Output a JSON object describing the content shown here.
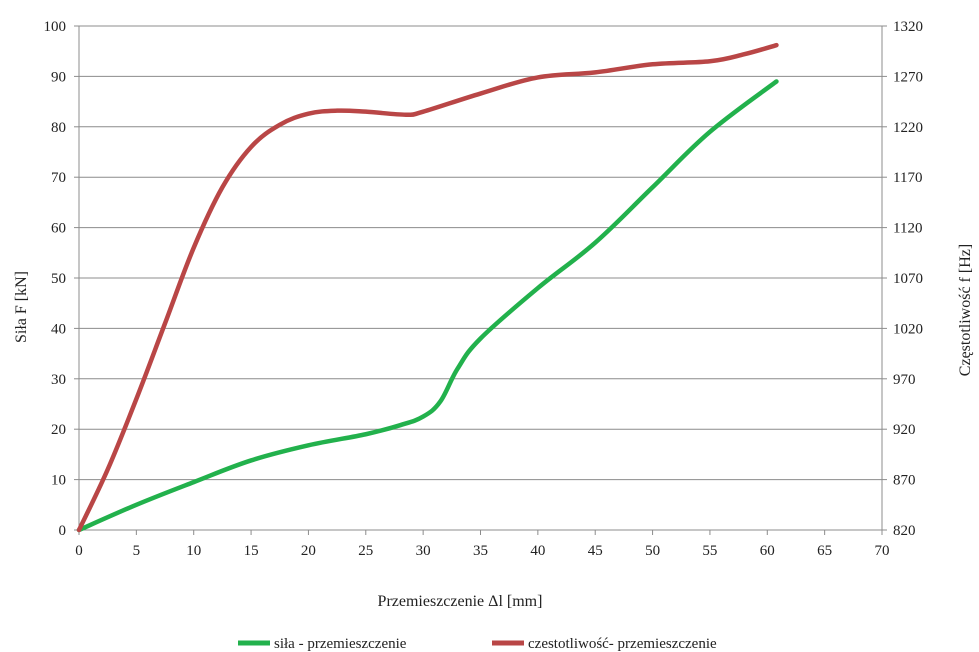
{
  "chart_data": {
    "type": "line",
    "xlabel": "Przemieszczenie Δl [mm]",
    "ylabel": "Siła F [kN]",
    "y2label": "Częstotliwość f [Hz]",
    "xlim": [
      0,
      70
    ],
    "ylim": [
      0,
      100
    ],
    "y2lim": [
      820,
      1320
    ],
    "x_ticks": [
      0,
      5,
      10,
      15,
      20,
      25,
      30,
      35,
      40,
      45,
      50,
      55,
      60,
      65,
      70
    ],
    "y_ticks": [
      0,
      10,
      20,
      30,
      40,
      50,
      60,
      70,
      80,
      90,
      100
    ],
    "y2_ticks": [
      820,
      870,
      920,
      970,
      1020,
      1070,
      1120,
      1170,
      1220,
      1270,
      1320
    ],
    "grid": true,
    "legend_position": "bottom",
    "series": [
      {
        "name": "siła - przemieszczenie",
        "axis": "left",
        "color": "#22b14c",
        "x": [
          0,
          5,
          10,
          15,
          20,
          25,
          28,
          30,
          31.5,
          33,
          35,
          40,
          45,
          50,
          55,
          60.8
        ],
        "y": [
          0,
          5,
          9.5,
          13.8,
          16.8,
          19,
          20.8,
          22.5,
          25.5,
          32,
          38,
          48,
          57,
          68,
          79,
          89
        ]
      },
      {
        "name": "czestotliwość- przemieszczenie",
        "axis": "right",
        "color": "#b94646",
        "x": [
          0,
          2.5,
          5,
          7.5,
          10,
          12.5,
          15,
          17.5,
          20,
          22.5,
          25,
          28.5,
          30,
          35,
          40,
          45,
          50,
          55,
          58,
          60.8
        ],
        "y": [
          820,
          880,
          950,
          1025,
          1100,
          1160,
          1200,
          1222,
          1233,
          1236,
          1235,
          1232,
          1235,
          1253,
          1269,
          1274,
          1282,
          1285,
          1292,
          1301
        ]
      }
    ]
  }
}
